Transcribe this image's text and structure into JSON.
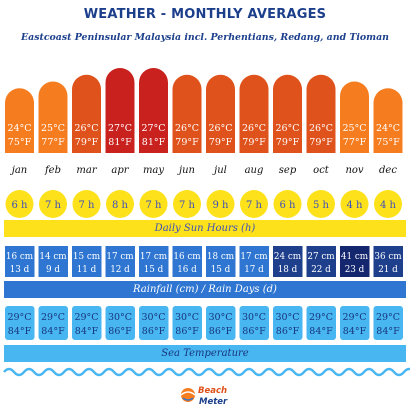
{
  "header": {
    "title": "WEATHER - MONTHLY AVERAGES",
    "subtitle": "Eastcoast Peninsular Malaysia incl. Perhentians, Redang, and Tioman"
  },
  "bands": {
    "sun": "Daily Sun Hours (h)",
    "rain": "Rainfall (cm) / Rain Days (d)",
    "sea": "Sea Temperature"
  },
  "logo": {
    "line1": "Beach",
    "line2": "Meter"
  },
  "colors": {
    "temp_orange": "#f57c1f",
    "temp_dark": "#e0521b",
    "temp_red": "#c9211e",
    "sun_yellow": "#fde11a",
    "sun_text": "#3d4fbb",
    "rain_light": "#2f76d2",
    "rain_dark": "#1e3f8c",
    "rain_darkest": "#13266e",
    "sea_blue": "#48b6f0",
    "sea_text": "#17357e",
    "title_blue": "#1c3f8c"
  },
  "chart_data": {
    "type": "table",
    "months": [
      "jan",
      "feb",
      "mar",
      "apr",
      "may",
      "jun",
      "jul",
      "aug",
      "sep",
      "oct",
      "nov",
      "dec"
    ],
    "air_temperature_c": [
      24,
      25,
      26,
      27,
      27,
      26,
      26,
      26,
      26,
      26,
      25,
      24
    ],
    "air_temperature_f": [
      75,
      77,
      79,
      81,
      81,
      79,
      79,
      79,
      79,
      79,
      77,
      75
    ],
    "daily_sun_hours": [
      6,
      7,
      7,
      8,
      7,
      7,
      9,
      7,
      6,
      5,
      4,
      4
    ],
    "rainfall_cm": [
      16,
      14,
      15,
      17,
      17,
      16,
      18,
      17,
      24,
      27,
      41,
      36
    ],
    "rain_days": [
      13,
      9,
      11,
      12,
      15,
      16,
      15,
      17,
      18,
      22,
      23,
      21
    ],
    "sea_temperature_c": [
      29,
      29,
      29,
      30,
      30,
      30,
      30,
      30,
      30,
      29,
      29,
      29
    ],
    "sea_temperature_f": [
      84,
      84,
      84,
      86,
      86,
      86,
      86,
      86,
      86,
      84,
      84,
      84
    ],
    "units": {
      "temp_c": "°C",
      "temp_f": "°F",
      "sun": "h",
      "rain": "cm",
      "days": "d"
    }
  }
}
